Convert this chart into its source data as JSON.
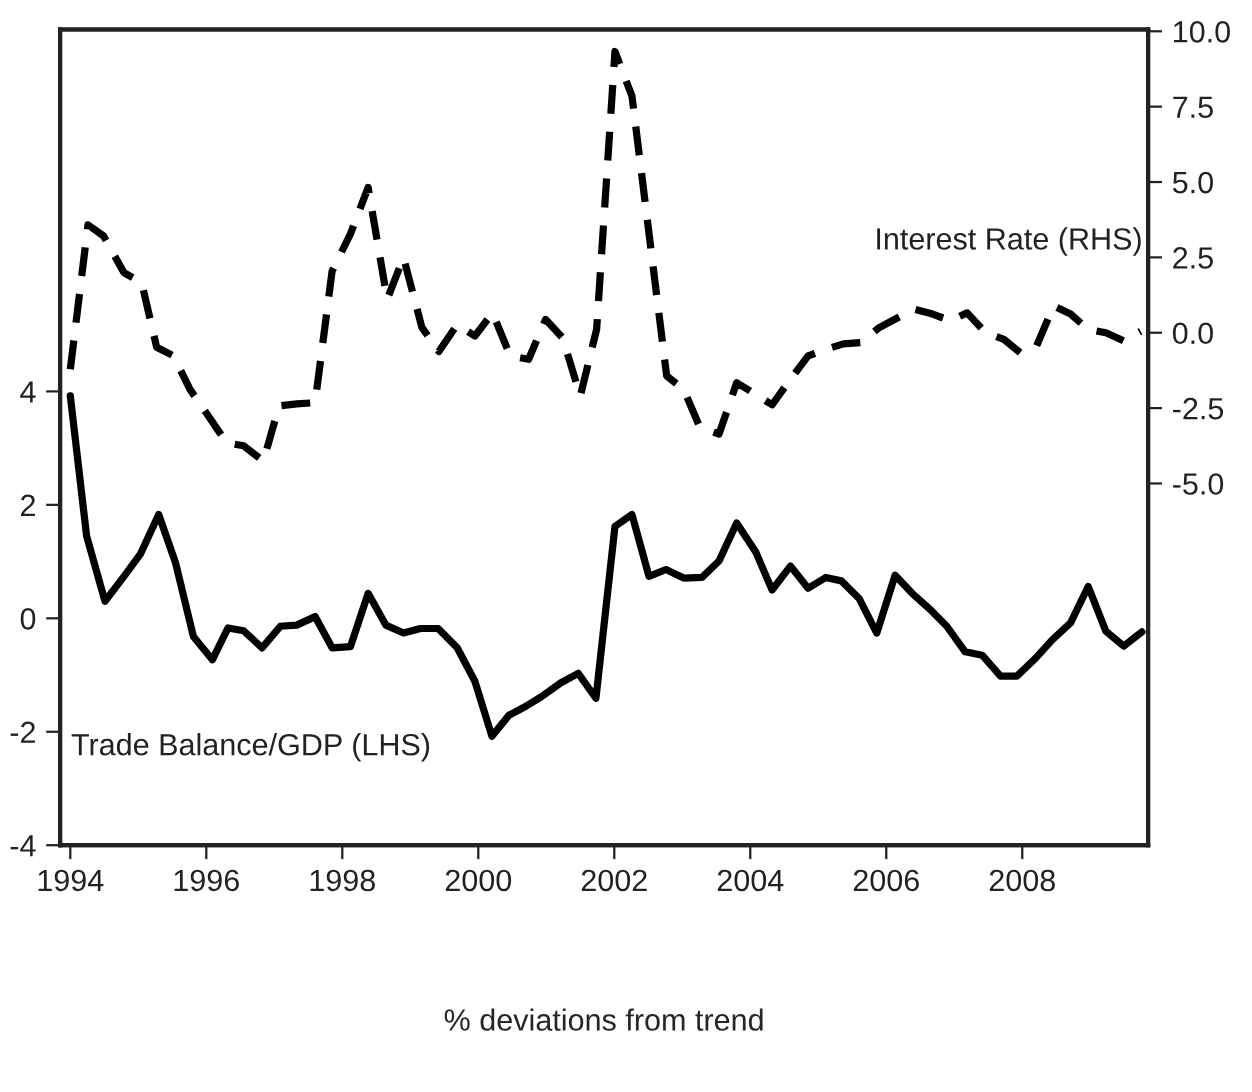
{
  "chart_data": {
    "type": "line",
    "xlabel": "% deviations from trend",
    "xlim": [
      1993.85,
      2009.85
    ],
    "xticks": [
      1994,
      1996,
      1998,
      2000,
      2002,
      2004,
      2006,
      2008
    ],
    "ylim": [
      -4,
      10.38
    ],
    "yticks": [
      -4,
      -2,
      0,
      2,
      4
    ],
    "y2lim": [
      -17,
      10.06
    ],
    "y2ticks": [
      {
        "value": -5,
        "label": "-5.0"
      },
      {
        "value": -2.5,
        "label": "-2.5"
      },
      {
        "value": 0,
        "label": "0.0"
      },
      {
        "value": 2.5,
        "label": "2.5"
      },
      {
        "value": 5,
        "label": "5.0"
      },
      {
        "value": 7.5,
        "label": "7.5"
      },
      {
        "value": 10,
        "label": "10.0"
      }
    ],
    "grid": false,
    "legend": false,
    "series": [
      {
        "name": "Trade Balance/GDP (LHS)",
        "color": "#000000",
        "line_style": "solid",
        "x": [
          1994.0,
          1994.24,
          1994.51,
          1994.79,
          1995.03,
          1995.3,
          1995.55,
          1995.81,
          1996.09,
          1996.32,
          1996.55,
          1996.82,
          1997.09,
          1997.33,
          1997.6,
          1997.85,
          1998.12,
          1998.38,
          1998.64,
          1998.9,
          1999.15,
          1999.41,
          1999.69,
          1999.95,
          2000.2,
          2000.45,
          2000.7,
          2000.93,
          2001.21,
          2001.47,
          2001.73,
          2002.01,
          2002.26,
          2002.51,
          2002.76,
          2003.02,
          2003.29,
          2003.54,
          2003.8,
          2004.08,
          2004.32,
          2004.59,
          2004.85,
          2005.11,
          2005.34,
          2005.6,
          2005.86,
          2006.13,
          2006.38,
          2006.65,
          2006.89,
          2007.16,
          2007.41,
          2007.68,
          2007.92,
          2008.19,
          2008.44,
          2008.71,
          2008.97,
          2009.23,
          2009.49,
          2009.76
        ],
        "values": [
          3.92,
          1.45,
          0.3,
          0.74,
          1.13,
          1.83,
          0.97,
          -0.32,
          -0.73,
          -0.17,
          -0.22,
          -0.52,
          -0.14,
          -0.12,
          0.03,
          -0.52,
          -0.5,
          0.44,
          -0.12,
          -0.26,
          -0.18,
          -0.18,
          -0.52,
          -1.11,
          -2.08,
          -1.71,
          -1.55,
          -1.38,
          -1.14,
          -0.97,
          -1.41,
          1.62,
          1.83,
          0.74,
          0.86,
          0.71,
          0.72,
          1.01,
          1.68,
          1.17,
          0.5,
          0.92,
          0.53,
          0.72,
          0.66,
          0.35,
          -0.26,
          0.76,
          0.44,
          0.15,
          -0.14,
          -0.59,
          -0.65,
          -1.02,
          -1.02,
          -0.71,
          -0.38,
          -0.08,
          0.56,
          -0.23,
          -0.49,
          -0.24
        ]
      },
      {
        "name": "Interest Rate (RHS)",
        "color": "#000000",
        "line_style": "dashed",
        "axis": "y2",
        "x": [
          1994.0,
          1994.26,
          1994.49,
          1994.79,
          1995.05,
          1995.27,
          1995.52,
          1995.76,
          1996.03,
          1996.3,
          1996.55,
          1996.84,
          1997.07,
          1997.33,
          1997.6,
          1997.85,
          1998.12,
          1998.38,
          1998.66,
          1998.9,
          1999.17,
          1999.42,
          1999.69,
          1999.95,
          2000.21,
          2000.47,
          2000.74,
          2000.99,
          2001.24,
          2001.5,
          2001.74,
          2002.01,
          2002.26,
          2002.77,
          2003.02,
          2003.26,
          2003.54,
          2003.8,
          2004.07,
          2004.32,
          2004.59,
          2004.85,
          2005.11,
          2005.37,
          2005.62,
          2005.89,
          2006.16,
          2006.42,
          2006.68,
          2006.94,
          2007.19,
          2007.46,
          2007.73,
          2007.97,
          2008.21,
          2008.46,
          2008.71,
          2008.97,
          2009.23,
          2009.49,
          2009.74
        ],
        "values": [
          -1.21,
          3.58,
          3.21,
          1.99,
          1.66,
          -0.48,
          -0.77,
          -1.88,
          -2.76,
          -3.65,
          -3.75,
          -4.26,
          -2.43,
          -2.36,
          -2.32,
          2.04,
          3.28,
          4.82,
          1.11,
          2.5,
          0.18,
          -0.62,
          0.27,
          -0.11,
          0.66,
          -0.77,
          -0.88,
          0.44,
          -0.17,
          -2.1,
          0.11,
          9.33,
          7.85,
          -1.43,
          -1.88,
          -3.14,
          -3.36,
          -1.66,
          -2.03,
          -2.39,
          -1.55,
          -0.77,
          -0.55,
          -0.37,
          -0.33,
          0.16,
          0.49,
          0.78,
          0.62,
          0.4,
          0.66,
          0.0,
          -0.22,
          -0.66,
          -0.44,
          0.89,
          0.62,
          0.11,
          0.0,
          -0.27,
          0.05
        ]
      }
    ]
  }
}
